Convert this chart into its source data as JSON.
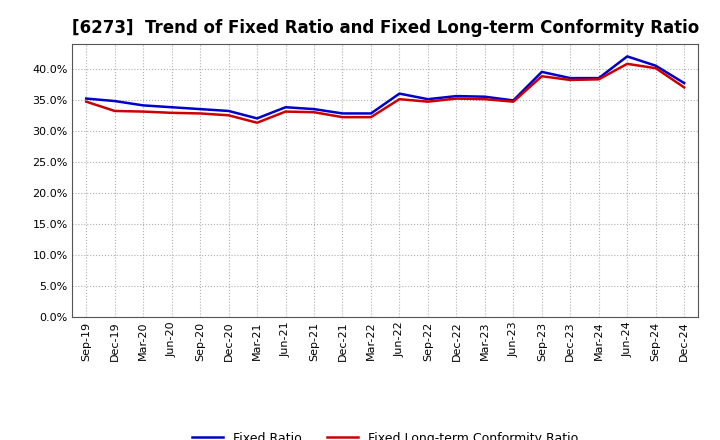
{
  "title": "[6273]  Trend of Fixed Ratio and Fixed Long-term Conformity Ratio",
  "labels": [
    "Sep-19",
    "Dec-19",
    "Mar-20",
    "Jun-20",
    "Sep-20",
    "Dec-20",
    "Mar-21",
    "Jun-21",
    "Sep-21",
    "Dec-21",
    "Mar-22",
    "Jun-22",
    "Sep-22",
    "Dec-22",
    "Mar-23",
    "Jun-23",
    "Sep-23",
    "Dec-23",
    "Mar-24",
    "Jun-24",
    "Sep-24",
    "Dec-24"
  ],
  "fixed_ratio": [
    35.2,
    34.8,
    34.1,
    33.8,
    33.5,
    33.2,
    32.0,
    33.8,
    33.5,
    32.8,
    32.8,
    36.0,
    35.1,
    35.6,
    35.5,
    34.9,
    39.5,
    38.5,
    38.5,
    42.0,
    40.5,
    37.7
  ],
  "fixed_lt_ratio": [
    34.7,
    33.2,
    33.1,
    32.9,
    32.8,
    32.5,
    31.3,
    33.1,
    33.0,
    32.2,
    32.2,
    35.1,
    34.7,
    35.2,
    35.1,
    34.7,
    38.8,
    38.2,
    38.3,
    40.8,
    40.1,
    37.0
  ],
  "fixed_ratio_color": "#0000cc",
  "fixed_lt_ratio_color": "#cc0000",
  "ylim": [
    0,
    44
  ],
  "yticks": [
    0,
    5,
    10,
    15,
    20,
    25,
    30,
    35,
    40
  ],
  "background_color": "#ffffff",
  "plot_bg_color": "#ffffff",
  "grid_color": "#b0b0b0",
  "title_fontsize": 12,
  "line_width": 1.8
}
